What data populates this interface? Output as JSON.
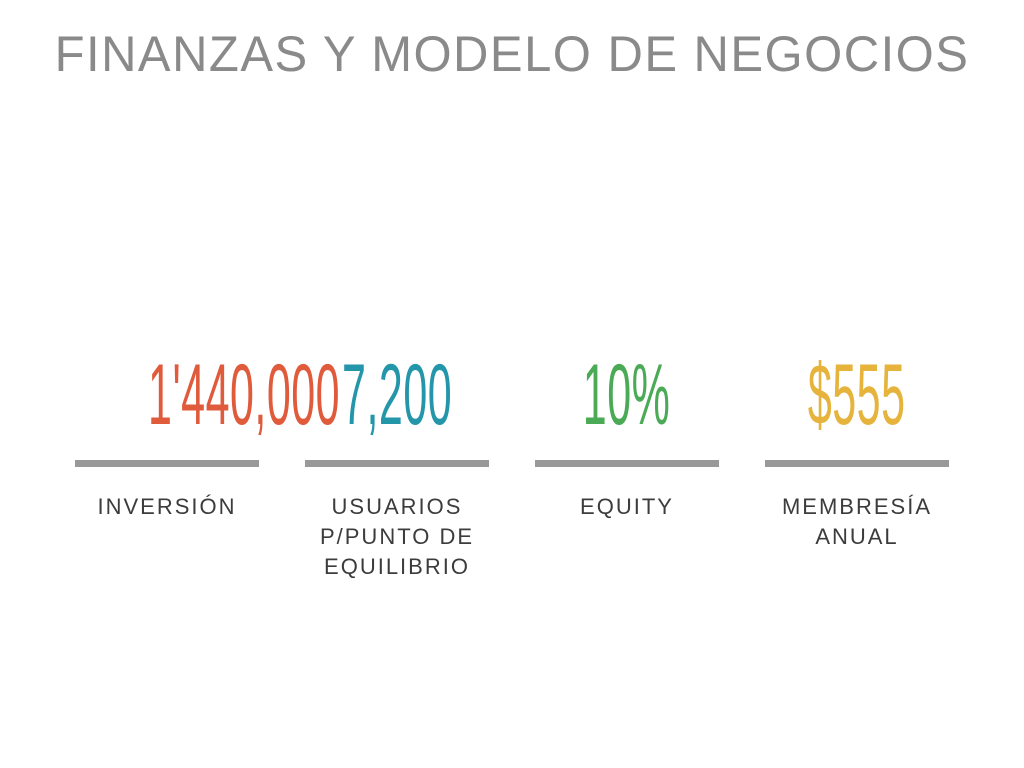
{
  "title": "FINANZAS Y MODELO DE NEGOCIOS",
  "colors": {
    "title": "#8A8A8A",
    "label": "#3C3C3C",
    "underline": "#999999",
    "stat_investment": "#E05A3C",
    "stat_users": "#2396AA",
    "stat_equity": "#4BAA55",
    "stat_membership": "#E6B43C"
  },
  "stats": [
    {
      "value": "1'440,000",
      "color": "#E05A3C",
      "label_lines": [
        "INVERSIÓN"
      ]
    },
    {
      "value": "7,200",
      "color": "#2396AA",
      "label_lines": [
        "USUARIOS",
        "P/PUNTO DE",
        "EQUILIBRIO"
      ]
    },
    {
      "value": "10%",
      "color": "#4BAA55",
      "label_lines": [
        "EQUITY"
      ]
    },
    {
      "value": "$555",
      "color": "#E6B43C",
      "label_lines": [
        "MEMBRESÍA",
        "ANUAL"
      ]
    }
  ]
}
